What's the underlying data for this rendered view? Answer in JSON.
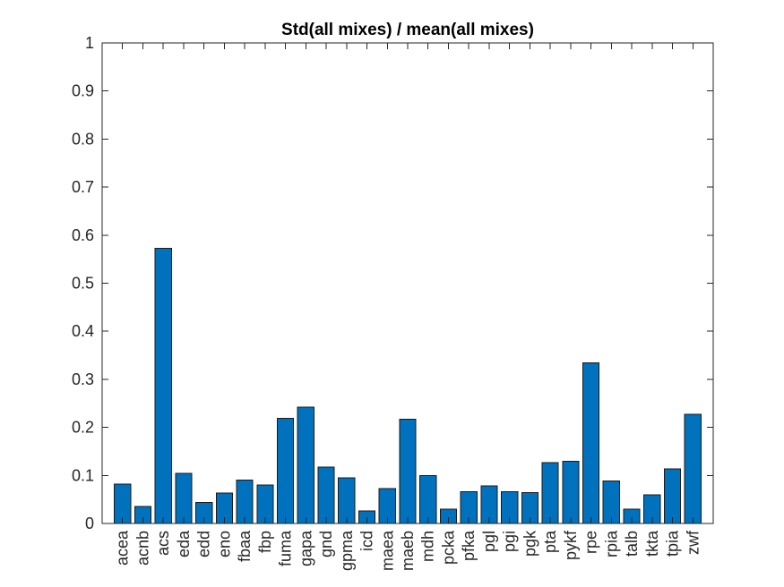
{
  "chart_data": {
    "type": "bar",
    "title": "Std(all mixes) / mean(all mixes)",
    "xlabel": "",
    "ylabel": "",
    "ylim": [
      0,
      1
    ],
    "yticks": [
      0,
      0.1,
      0.2,
      0.3,
      0.4,
      0.5,
      0.6,
      0.7,
      0.8,
      0.9,
      1
    ],
    "ytick_labels": [
      "0",
      "0.1",
      "0.2",
      "0.3",
      "0.4",
      "0.5",
      "0.6",
      "0.7",
      "0.8",
      "0.9",
      "1"
    ],
    "grid": false,
    "bar_color": "#0072BD",
    "categories": [
      "acea",
      "acnb",
      "acs",
      "eda",
      "edd",
      "eno",
      "fbaa",
      "fbp",
      "fuma",
      "gapa",
      "gnd",
      "gpma",
      "icd",
      "maea",
      "maeb",
      "mdh",
      "pcka",
      "pfka",
      "pgl",
      "pgi",
      "pgk",
      "pta",
      "pykf",
      "rpe",
      "rpia",
      "talb",
      "tkta",
      "tpia",
      "zwf"
    ],
    "values": [
      0.082,
      0.035,
      0.573,
      0.104,
      0.044,
      0.063,
      0.09,
      0.08,
      0.219,
      0.242,
      0.117,
      0.095,
      0.026,
      0.073,
      0.217,
      0.1,
      0.03,
      0.066,
      0.078,
      0.066,
      0.064,
      0.127,
      0.129,
      0.334,
      0.088,
      0.03,
      0.06,
      0.114,
      0.227
    ]
  }
}
